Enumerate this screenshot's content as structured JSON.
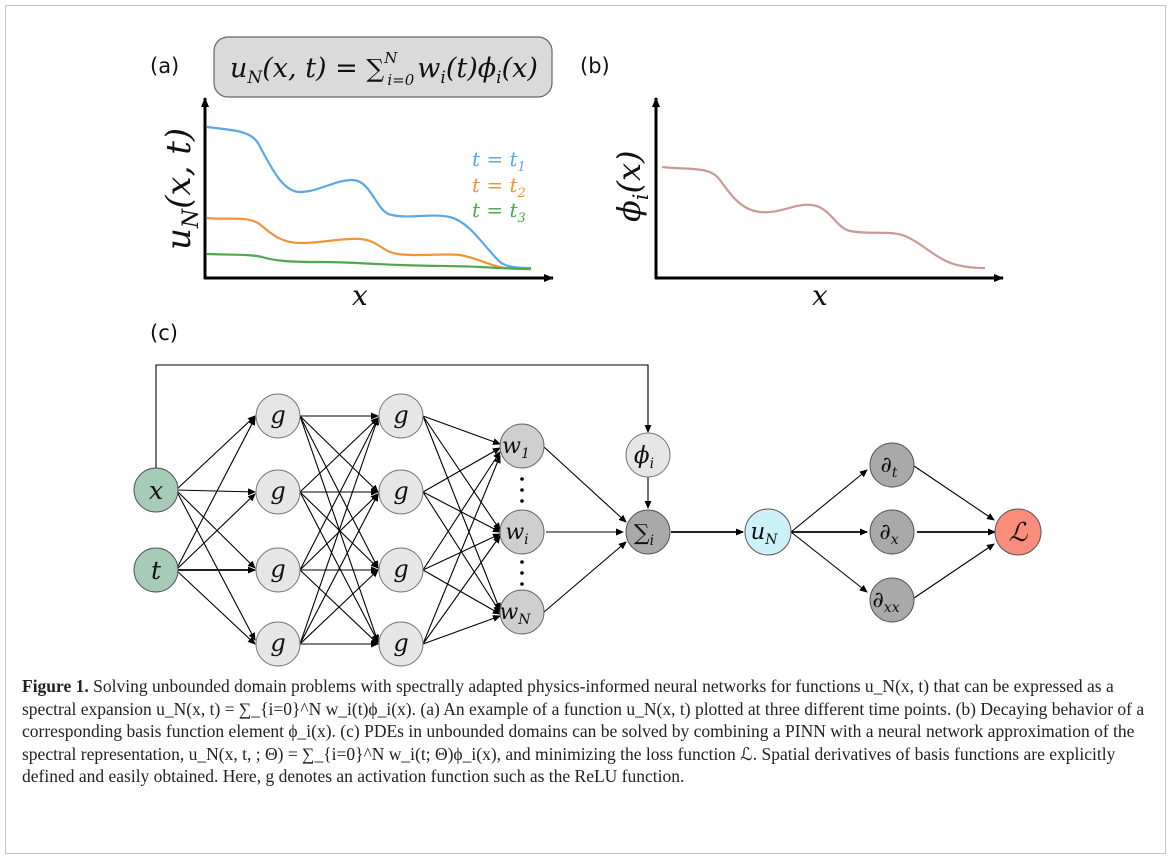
{
  "panels": {
    "a": {
      "label": "(a)",
      "formula": {
        "lhs": "u",
        "lhs_sub": "N",
        "lhs_args": "(x, t) = ",
        "sum": "∑",
        "sum_sup": "N",
        "sum_sub": "i=0",
        "rhs_a": "w",
        "rhs_a_sub": "i",
        "rhs_a_args": "(t)",
        "rhs_b": "ϕ",
        "rhs_b_sub": "i",
        "rhs_b_args": "(x)"
      },
      "ylabel": {
        "main": "u",
        "sub": "N",
        "args": "(x, t)"
      },
      "xlabel": "x",
      "legend": [
        {
          "main": "t = t",
          "sub": "1",
          "color": "#5aa6e6"
        },
        {
          "main": "t = t",
          "sub": "2",
          "color": "#f0943c"
        },
        {
          "main": "t = t",
          "sub": "3",
          "color": "#4fa84f"
        }
      ]
    },
    "b": {
      "label": "(b)",
      "ylabel": {
        "main": "ϕ",
        "sub": "i",
        "args": "(x)"
      },
      "xlabel": "x",
      "curve_color": "#c99a95"
    },
    "c": {
      "label": "(c)"
    }
  },
  "network": {
    "inputs": [
      {
        "main": "x",
        "sub": ""
      },
      {
        "main": "t",
        "sub": ""
      }
    ],
    "hidden_label": "g",
    "weights": [
      {
        "main": "w",
        "sub": "1"
      },
      {
        "main": "w",
        "sub": "i"
      },
      {
        "main": "w",
        "sub": "N"
      }
    ],
    "basis": {
      "main": "ϕ",
      "sub": "i"
    },
    "sum": {
      "main": "∑",
      "sub": "i"
    },
    "output": {
      "main": "u",
      "sub": "N"
    },
    "derivs": [
      {
        "main": "∂",
        "sub": "t"
      },
      {
        "main": "∂",
        "sub": "x"
      },
      {
        "main": "∂",
        "sub": "xx"
      }
    ],
    "loss": {
      "main": "ℒ",
      "sub": ""
    },
    "colors": {
      "input": "#a6cbb6",
      "hidden": "#e6e6e6",
      "weight": "#cfcfcf",
      "sum": "#a9a9a9",
      "output": "#cdf1fb",
      "deriv": "#a9a9a9",
      "loss": "#fa8d7c"
    }
  },
  "caption": {
    "label": "Figure 1.",
    "text": "Solving unbounded domain problems with spectrally adapted physics-informed neural networks for functions u_N(x, t) that can be expressed as a spectral expansion u_N(x, t) = ∑_{i=0}^N w_i(t)ϕ_i(x). (a) An example of a function u_N(x, t) plotted at three different time points. (b) Decaying behavior of a corresponding basis function element ϕ_i(x). (c) PDEs in unbounded domains can be solved by combining a PINN with a neural network approximation of the spectral representation, u_N(x, t, ; Θ) = ∑_{i=0}^N w_i(t; Θ)ϕ_i(x), and minimizing the loss function ℒ. Spatial derivatives of basis functions are explicitly defined and easily obtained. Here, g denotes an activation function such as the ReLU function."
  }
}
